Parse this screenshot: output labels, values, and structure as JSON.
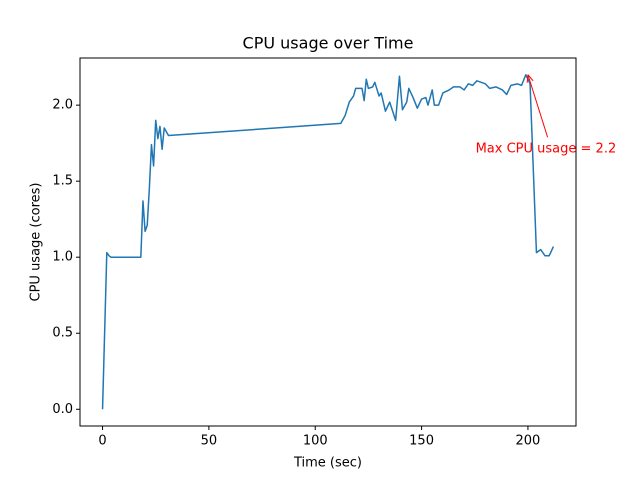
{
  "chart_data": {
    "type": "line",
    "title": "CPU usage over Time",
    "x_label": "Time (sec)",
    "y_label": "CPU usage (cores)",
    "x": [
      0,
      2,
      3,
      4,
      6,
      8,
      10,
      12,
      14,
      16,
      17,
      18,
      19,
      20,
      21,
      22,
      23,
      24,
      25,
      26,
      27,
      28,
      29,
      31,
      112,
      114,
      116,
      118,
      119,
      122,
      123,
      124,
      125,
      127,
      128,
      130,
      131,
      133,
      135,
      137.8,
      139.6,
      141,
      143,
      144,
      146,
      148,
      150,
      152,
      153,
      155,
      156,
      158,
      160,
      163,
      165,
      168,
      170,
      172,
      174,
      176,
      180,
      182,
      185,
      188,
      190,
      192,
      195,
      197,
      199,
      201,
      204,
      206,
      208,
      210,
      212
    ],
    "values": [
      0,
      1.03,
      1.01,
      1.0,
      1.0,
      1.0,
      1.0,
      1.0,
      1.0,
      1.0,
      1.0,
      1.0,
      1.37,
      1.17,
      1.21,
      1.45,
      1.74,
      1.6,
      1.9,
      1.78,
      1.86,
      1.71,
      1.85,
      1.8,
      1.88,
      1.93,
      2.02,
      2.06,
      2.11,
      2.11,
      2.03,
      2.17,
      2.11,
      2.12,
      2.15,
      2.06,
      2.08,
      1.96,
      2.02,
      1.9,
      2.19,
      1.97,
      2.02,
      2.11,
      2.05,
      1.98,
      2.04,
      2.05,
      2.0,
      2.1,
      2.0,
      2.0,
      2.08,
      2.1,
      2.12,
      2.12,
      2.1,
      2.14,
      2.13,
      2.16,
      2.14,
      2.11,
      2.12,
      2.1,
      2.07,
      2.13,
      2.14,
      2.13,
      2.2,
      2.14,
      1.03,
      1.05,
      1.01,
      1.01,
      1.07
    ],
    "color": "#1f77b4",
    "xlim": [
      -10.6,
      222.6
    ],
    "ylim": [
      -0.11,
      2.31
    ],
    "xticks": [
      0,
      50,
      100,
      150,
      200
    ],
    "yticks": [
      {
        "value": 0,
        "label": "0.0"
      },
      {
        "value": 0.5,
        "label": "0.5"
      },
      {
        "value": 1,
        "label": "1.0"
      },
      {
        "value": 1.5,
        "label": "1.5"
      },
      {
        "value": 2,
        "label": "2.0"
      }
    ],
    "grid": false,
    "annotation": {
      "text": "Max CPU usage = 2.2",
      "xy": [
        200,
        2.2
      ],
      "xytext": [
        175.4,
        1.71
      ],
      "color": "red"
    }
  }
}
